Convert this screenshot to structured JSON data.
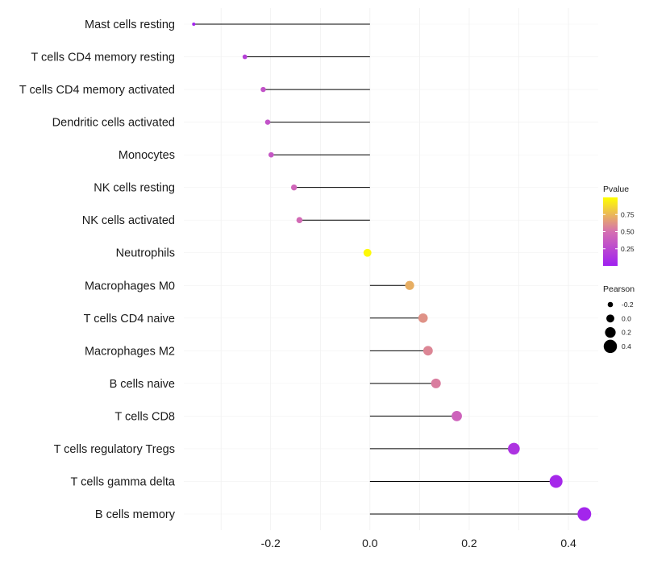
{
  "chart_data": {
    "type": "lollipop",
    "title": "",
    "xlabel": "",
    "ylabel": "",
    "xlim": [
      -0.375,
      0.46
    ],
    "xticks": [
      -0.2,
      0.0,
      0.2,
      0.4
    ],
    "xtick_labels": [
      "-0.2",
      "0.0",
      "0.2",
      "0.4"
    ],
    "grid": true,
    "categories": [
      "Mast cells resting",
      "T cells CD4 memory resting",
      "T cells CD4 memory activated",
      "Dendritic cells activated",
      "Monocytes",
      "NK cells resting",
      "NK cells activated",
      "Neutrophils",
      "Macrophages M0",
      "T cells CD4 naive",
      "Macrophages M2",
      "B cells naive",
      "T cells CD8",
      "T cells regulatory  Tregs ",
      "T cells gamma delta",
      "B cells memory"
    ],
    "pearson": [
      -0.355,
      -0.252,
      -0.215,
      -0.206,
      -0.199,
      -0.153,
      -0.142,
      -0.005,
      0.08,
      0.107,
      0.117,
      0.133,
      0.175,
      0.29,
      0.375,
      0.432
    ],
    "pvalue": [
      0.02,
      0.2,
      0.32,
      0.32,
      0.35,
      0.44,
      0.47,
      0.98,
      0.72,
      0.62,
      0.58,
      0.55,
      0.42,
      0.12,
      0.05,
      0.03
    ],
    "legend_placement": "right",
    "color_legend": {
      "title": "Pvalue",
      "ticks": [
        "0.75",
        "0.50",
        "0.25"
      ],
      "tick_values": [
        0.75,
        0.5,
        0.25
      ],
      "range": [
        0.0,
        1.0
      ],
      "low_color": "#a020f0",
      "mid_color": "#d56fb1",
      "high_color": "#ffff00"
    },
    "size_legend": {
      "title": "Pearson",
      "labels": [
        "-0.2",
        "0.0",
        "0.2",
        "0.4"
      ],
      "values": [
        -0.2,
        0.0,
        0.2,
        0.4
      ]
    }
  }
}
